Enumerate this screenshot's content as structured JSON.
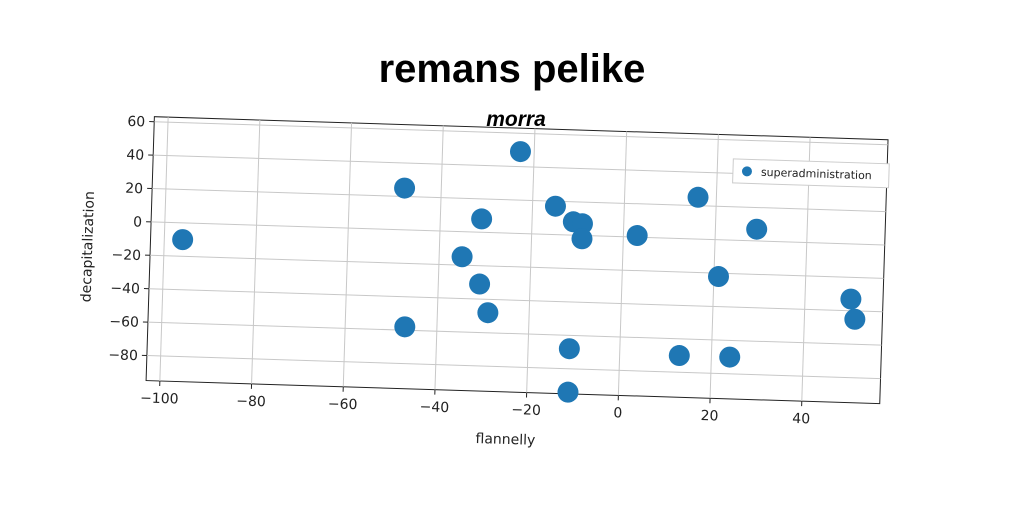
{
  "chart_data": {
    "type": "scatter",
    "title": "remans pelike",
    "subtitle": "morra",
    "xlabel": "flannelly",
    "ylabel": "decapitalization",
    "xlim": [
      -103,
      57
    ],
    "ylim": [
      -95,
      63
    ],
    "xticks": [
      -100,
      -80,
      -60,
      -40,
      -20,
      0,
      20,
      40
    ],
    "yticks": [
      60,
      40,
      20,
      0,
      -20,
      -40,
      -60,
      -80
    ],
    "grid": true,
    "legend_position": "top-right",
    "series": [
      {
        "name": "superadministration",
        "color": "#1f77b4",
        "points": [
          {
            "x": -96,
            "y": -10
          },
          {
            "x": -48,
            "y": 25
          },
          {
            "x": -47,
            "y": -58
          },
          {
            "x": -35,
            "y": -15
          },
          {
            "x": -31,
            "y": 8
          },
          {
            "x": -31,
            "y": -31
          },
          {
            "x": -29,
            "y": -48
          },
          {
            "x": -23,
            "y": 49
          },
          {
            "x": -15,
            "y": 17
          },
          {
            "x": -11,
            "y": 8
          },
          {
            "x": -9,
            "y": 7
          },
          {
            "x": -9,
            "y": -2
          },
          {
            "x": -11,
            "y": -68
          },
          {
            "x": -11,
            "y": -94
          },
          {
            "x": 3,
            "y": 1
          },
          {
            "x": 13,
            "y": -70
          },
          {
            "x": 16,
            "y": 25
          },
          {
            "x": 21,
            "y": -22
          },
          {
            "x": 24,
            "y": -70
          },
          {
            "x": 29,
            "y": 7
          },
          {
            "x": 50,
            "y": -33
          },
          {
            "x": 51,
            "y": -45
          }
        ]
      }
    ]
  }
}
